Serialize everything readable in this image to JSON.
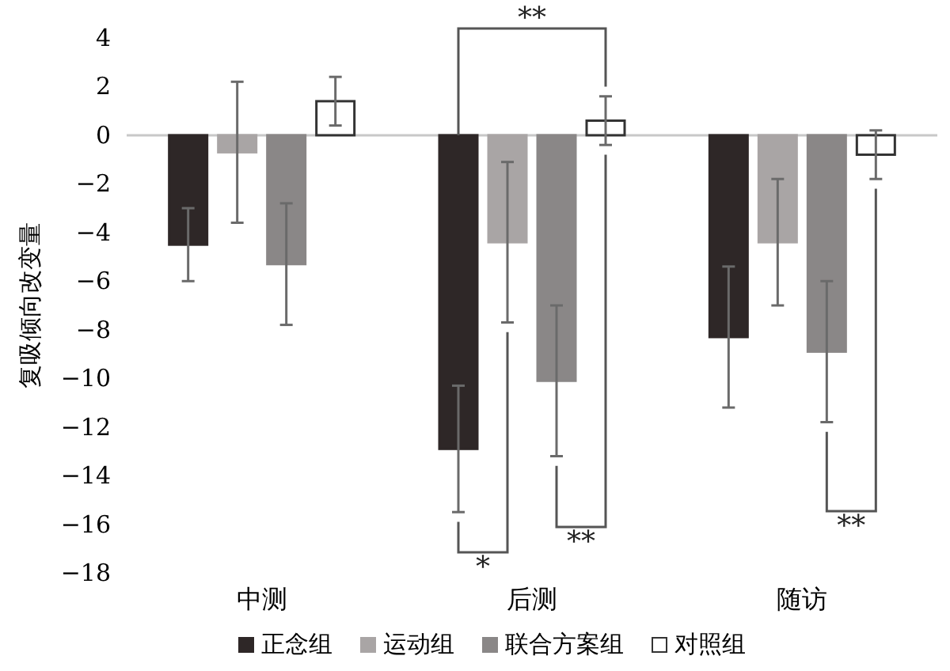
{
  "chart_data": {
    "type": "bar",
    "ylabel": "复吸倾向改变量",
    "categories": [
      "中测",
      "后测",
      "随访"
    ],
    "series": [
      {
        "name": "正念组",
        "color": "#2e2727",
        "values": [
          -4.5,
          -12.9,
          -8.3
        ],
        "errors": [
          1.5,
          2.6,
          2.9
        ]
      },
      {
        "name": "运动组",
        "color": "#a9a5a5",
        "values": [
          -0.7,
          -4.4,
          -4.4
        ],
        "errors": [
          2.9,
          3.3,
          2.6
        ]
      },
      {
        "name": "联合方案组",
        "color": "#8a8787",
        "values": [
          -5.3,
          -10.1,
          -8.9
        ],
        "errors": [
          2.5,
          3.1,
          2.9
        ]
      },
      {
        "name": "对照组",
        "color": "#ffffff",
        "values": [
          1.4,
          0.6,
          -0.8
        ],
        "errors": [
          1.0,
          1.0,
          1.0
        ]
      }
    ],
    "ylim": [
      -18,
      4
    ],
    "yticks": [
      -18,
      -16,
      -14,
      -12,
      -10,
      -8,
      -6,
      -4,
      -2,
      0,
      2,
      4
    ],
    "legend": "bottom",
    "annotations": [
      "**",
      "*",
      "**",
      "**"
    ]
  }
}
